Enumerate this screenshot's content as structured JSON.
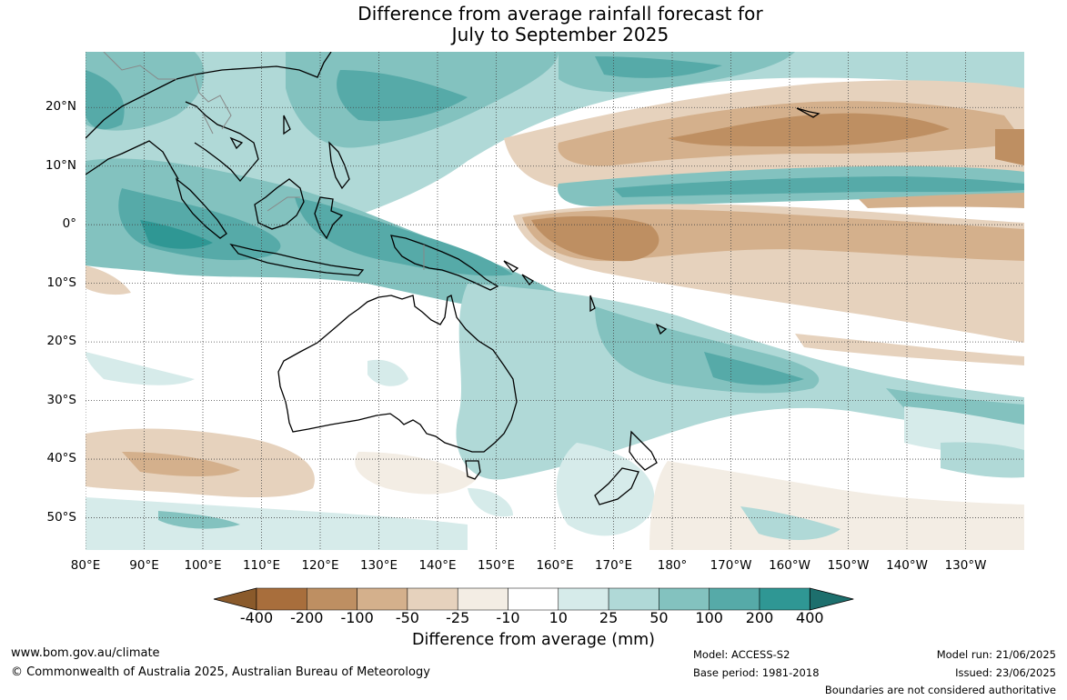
{
  "title": {
    "line1": "Difference from average rainfall forecast for",
    "line2": "July to September 2025"
  },
  "map": {
    "lat_labels": [
      "20°N",
      "10°N",
      "0°",
      "10°S",
      "20°S",
      "30°S",
      "40°S",
      "50°S"
    ],
    "lon_labels": [
      "80°E",
      "90°E",
      "100°E",
      "110°E",
      "120°E",
      "130°E",
      "140°E",
      "150°E",
      "160°E",
      "170°E",
      "180°",
      "170°W",
      "160°W",
      "150°W",
      "140°W",
      "130°W"
    ],
    "lat_values": [
      20,
      10,
      0,
      -10,
      -20,
      -30,
      -40,
      -50
    ],
    "lon_values": [
      80,
      90,
      100,
      110,
      120,
      130,
      140,
      150,
      160,
      170,
      180,
      190,
      200,
      210,
      220,
      230
    ],
    "lon_range": [
      80,
      240
    ],
    "lat_range": [
      -55.5,
      29.5
    ]
  },
  "legend": {
    "tick_labels": [
      "-400",
      "-200",
      "-100",
      "-50",
      "-25",
      "-10",
      "10",
      "25",
      "50",
      "100",
      "200",
      "400"
    ],
    "colors": [
      "#a86e3c",
      "#be8f62",
      "#d4b08c",
      "#e6d2bd",
      "#f3ede4",
      "#ffffff",
      "#d6ebea",
      "#b0d9d7",
      "#83c2bf",
      "#56aaa8",
      "#2f9794",
      "#1d6f6d"
    ],
    "title": "Difference from average (mm)"
  },
  "footer": {
    "url": "www.bom.gov.au/climate",
    "copyright": "© Commonwealth of Australia 2025, Australian Bureau of Meteorology",
    "model": "Model: ACCESS-S2",
    "base_period": "Base period: 1981-2018",
    "model_run": "Model run: 21/06/2025",
    "issued": "Issued: 23/06/2025",
    "boundaries": "Boundaries are not considered authoritative"
  }
}
